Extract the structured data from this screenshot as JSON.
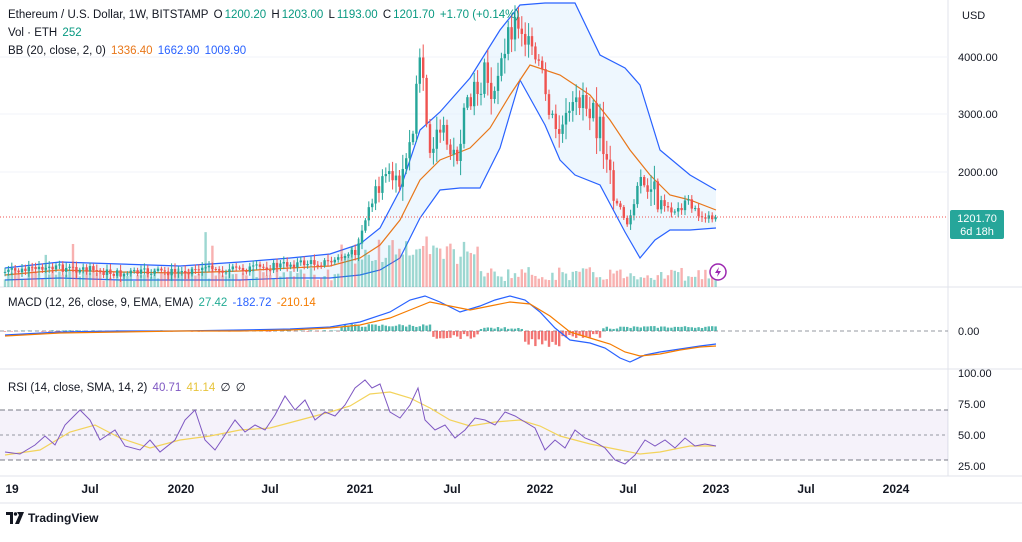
{
  "header": {
    "symbol": "Ethereum / U.S. Dollar, 1W, BITSTAMP",
    "o_label": "O",
    "o_value": "1200.20",
    "h_label": "H",
    "h_value": "1203.00",
    "l_label": "L",
    "l_value": "1193.00",
    "c_label": "C",
    "c_value": "1201.70",
    "change": "+1.70 (+0.14%)",
    "vol_label": "Vol · ETH",
    "vol_value": "252",
    "bb_label": "BB (20, close, 2, 0)",
    "bb_basis": "1336.40",
    "bb_upper": "1662.90",
    "bb_lower": "1009.90"
  },
  "macd_legend": {
    "label": "MACD (12, 26, close, 9, EMA, EMA)",
    "hist": "27.42",
    "macd": "-182.72",
    "signal": "-210.14"
  },
  "rsi_legend": {
    "label": "RSI (14, close, SMA, 14, 2)",
    "rsi": "40.71",
    "sma": "41.14",
    "v1": "∅",
    "v2": "∅"
  },
  "price_axis": {
    "currency": "USD",
    "ticks": [
      "4000.00",
      "3000.00",
      "2000.00"
    ],
    "last_price": "1201.70",
    "countdown": "6d 18h"
  },
  "macd_axis": {
    "ticks": [
      "0.00"
    ]
  },
  "rsi_axis": {
    "ticks": [
      "100.00",
      "75.00",
      "50.00",
      "25.00"
    ]
  },
  "time_axis": {
    "labels": [
      "19",
      "Jul",
      "2020",
      "Jul",
      "2021",
      "Jul",
      "2022",
      "Jul",
      "2023",
      "Jul",
      "2024"
    ]
  },
  "brand": "TradingView",
  "colors": {
    "up": "#26a69a",
    "down": "#ef5350",
    "bb_basis": "#e8771a",
    "bb_band": "#2962ff",
    "macd": "#2962ff",
    "signal": "#f57c00",
    "rsi": "#7e57c2",
    "rsi_sma": "#f3d35b"
  },
  "chart_data": {
    "type": "candlestick",
    "interval": "1W",
    "x": [
      "2019-01",
      "2019-07",
      "2020-01",
      "2020-07",
      "2021-01",
      "2021-05",
      "2021-07",
      "2021-11",
      "2022-01",
      "2022-04",
      "2022-06",
      "2022-08",
      "2022-11",
      "2023-01"
    ],
    "close": [
      130,
      300,
      130,
      240,
      730,
      4200,
      1800,
      4650,
      3500,
      3000,
      1050,
      1900,
      1220,
      1201.7
    ],
    "bb_basis": [
      140,
      250,
      170,
      230,
      600,
      2800,
      2600,
      4000,
      3800,
      3200,
      2000,
      1600,
      1400,
      1336.4
    ],
    "bb_upper": [
      220,
      320,
      270,
      330,
      1000,
      4500,
      4000,
      4800,
      4600,
      4400,
      3900,
      2100,
      1700,
      1662.9
    ],
    "bb_lower": [
      60,
      180,
      70,
      130,
      200,
      1100,
      1400,
      2900,
      2700,
      2000,
      600,
      1000,
      1000,
      1009.9
    ],
    "macd": [
      0,
      30,
      0,
      20,
      150,
      600,
      200,
      400,
      100,
      -200,
      -500,
      -200,
      -190,
      -182.72
    ],
    "signal": [
      0,
      25,
      5,
      15,
      100,
      450,
      300,
      380,
      200,
      -100,
      -350,
      -280,
      -215,
      -210.14
    ],
    "rsi": [
      45,
      60,
      35,
      80,
      88,
      75,
      55,
      66,
      40,
      48,
      28,
      44,
      46,
      40.71
    ],
    "rsi_sma": [
      50,
      55,
      45,
      68,
      82,
      76,
      60,
      63,
      45,
      44,
      36,
      40,
      42,
      41.14
    ],
    "ylim_price": [
      0,
      5000
    ],
    "rsi_levels": [
      70,
      50,
      30
    ]
  }
}
